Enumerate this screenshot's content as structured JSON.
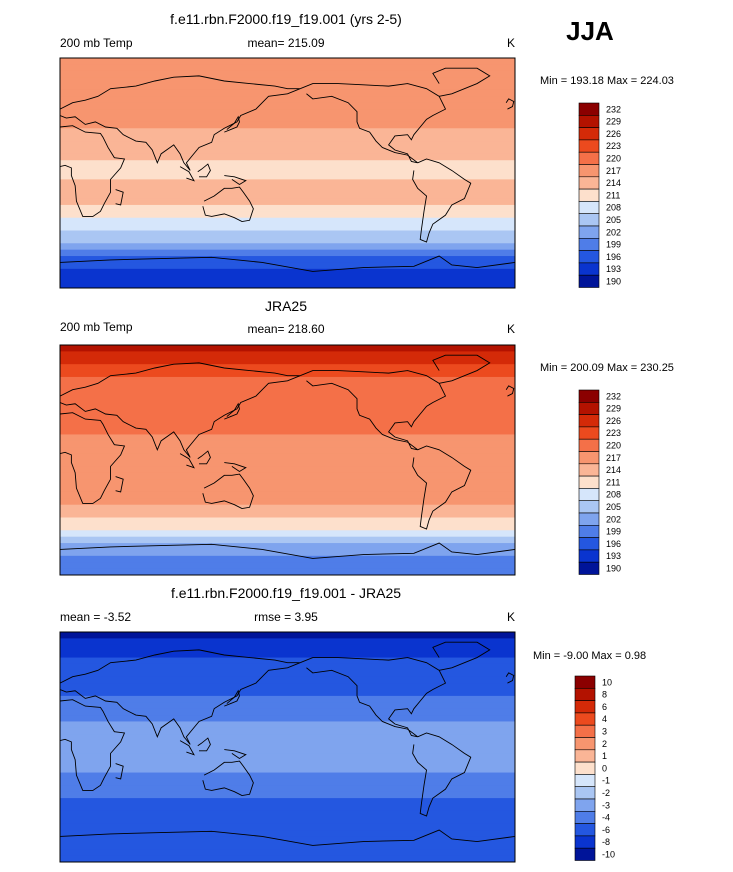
{
  "season": "JJA",
  "panels": [
    {
      "title": "f.e11.rbn.F2000.f19_f19.001 (yrs 2-5)",
      "left_label": "200 mb Temp",
      "center_label": "mean= 215.09",
      "right_label": "K",
      "minmax": "Min = 193.18 Max = 224.03"
    },
    {
      "title": "JRA25",
      "left_label": "200 mb Temp",
      "center_label": "mean= 218.60",
      "right_label": "K",
      "minmax": "Min = 200.09 Max = 230.25"
    },
    {
      "title": "f.e11.rbn.F2000.f19_f19.001 - JRA25",
      "left_label": "mean =  -3.52",
      "center_label": "rmse =   3.95",
      "right_label": "K",
      "minmax": "Min =  -9.00 Max =   0.98"
    }
  ],
  "chart_data": [
    {
      "type": "heatmap",
      "title": "f.e11.rbn.F2000.f19_f19.001 (yrs 2-5)",
      "variable": "200 mb Temp",
      "units": "K",
      "mean": 215.09,
      "min": 193.18,
      "max": 224.03,
      "colorbar_levels": [
        "232",
        "229",
        "226",
        "223",
        "220",
        "217",
        "214",
        "211",
        "208",
        "205",
        "202",
        "199",
        "196",
        "193",
        "190"
      ],
      "colorbar_colors": [
        "#8b0000",
        "#b31200",
        "#d42a08",
        "#ec4a1e",
        "#f47048",
        "#f7956f",
        "#fab596",
        "#fde0cc",
        "#d6e6fb",
        "#aac6f3",
        "#7fa4ee",
        "#4f7de8",
        "#2457e0",
        "#0a34cf",
        "#001499"
      ],
      "latitude_profile": [
        {
          "lat": 90,
          "value": 218
        },
        {
          "lat": 60,
          "value": 217
        },
        {
          "lat": 40,
          "value": 218
        },
        {
          "lat": 20,
          "value": 215
        },
        {
          "lat": 0,
          "value": 213
        },
        {
          "lat": -20,
          "value": 216
        },
        {
          "lat": -40,
          "value": 210
        },
        {
          "lat": -55,
          "value": 204
        },
        {
          "lat": -70,
          "value": 197
        },
        {
          "lat": -90,
          "value": 193
        }
      ]
    },
    {
      "type": "heatmap",
      "title": "JRA25",
      "variable": "200 mb Temp",
      "units": "K",
      "mean": 218.6,
      "min": 200.09,
      "max": 230.25,
      "colorbar_levels": [
        "232",
        "229",
        "226",
        "223",
        "220",
        "217",
        "214",
        "211",
        "208",
        "205",
        "202",
        "199",
        "196",
        "193",
        "190"
      ],
      "colorbar_colors": [
        "#8b0000",
        "#b31200",
        "#d42a08",
        "#ec4a1e",
        "#f47048",
        "#f7956f",
        "#fab596",
        "#fde0cc",
        "#d6e6fb",
        "#aac6f3",
        "#7fa4ee",
        "#4f7de8",
        "#2457e0",
        "#0a34cf",
        "#001499"
      ],
      "latitude_profile": [
        {
          "lat": 90,
          "value": 230
        },
        {
          "lat": 60,
          "value": 222
        },
        {
          "lat": 40,
          "value": 223
        },
        {
          "lat": 20,
          "value": 220
        },
        {
          "lat": 0,
          "value": 218
        },
        {
          "lat": -20,
          "value": 220
        },
        {
          "lat": -40,
          "value": 216
        },
        {
          "lat": -55,
          "value": 210
        },
        {
          "lat": -70,
          "value": 203
        },
        {
          "lat": -90,
          "value": 200
        }
      ]
    },
    {
      "type": "heatmap",
      "title": "f.e11.rbn.F2000.f19_f19.001 - JRA25",
      "variable": "difference",
      "units": "K",
      "mean": -3.52,
      "rmse": 3.95,
      "min": -9.0,
      "max": 0.98,
      "colorbar_levels": [
        "10",
        "8",
        "6",
        "4",
        "3",
        "2",
        "1",
        "0",
        "-1",
        "-2",
        "-3",
        "-4",
        "-6",
        "-8",
        "-10"
      ],
      "colorbar_colors": [
        "#8b0000",
        "#b31200",
        "#d42a08",
        "#ec4a1e",
        "#f47048",
        "#f7956f",
        "#fab596",
        "#fde0cc",
        "#d6e6fb",
        "#aac6f3",
        "#7fa4ee",
        "#4f7de8",
        "#2457e0",
        "#0a34cf",
        "#001499"
      ],
      "latitude_profile": [
        {
          "lat": 90,
          "value": -9
        },
        {
          "lat": 60,
          "value": -5
        },
        {
          "lat": 40,
          "value": -4
        },
        {
          "lat": 20,
          "value": -3
        },
        {
          "lat": 0,
          "value": -3
        },
        {
          "lat": -20,
          "value": -3
        },
        {
          "lat": -40,
          "value": -4
        },
        {
          "lat": -55,
          "value": -5
        },
        {
          "lat": -70,
          "value": -4
        },
        {
          "lat": -90,
          "value": -6
        }
      ]
    }
  ]
}
